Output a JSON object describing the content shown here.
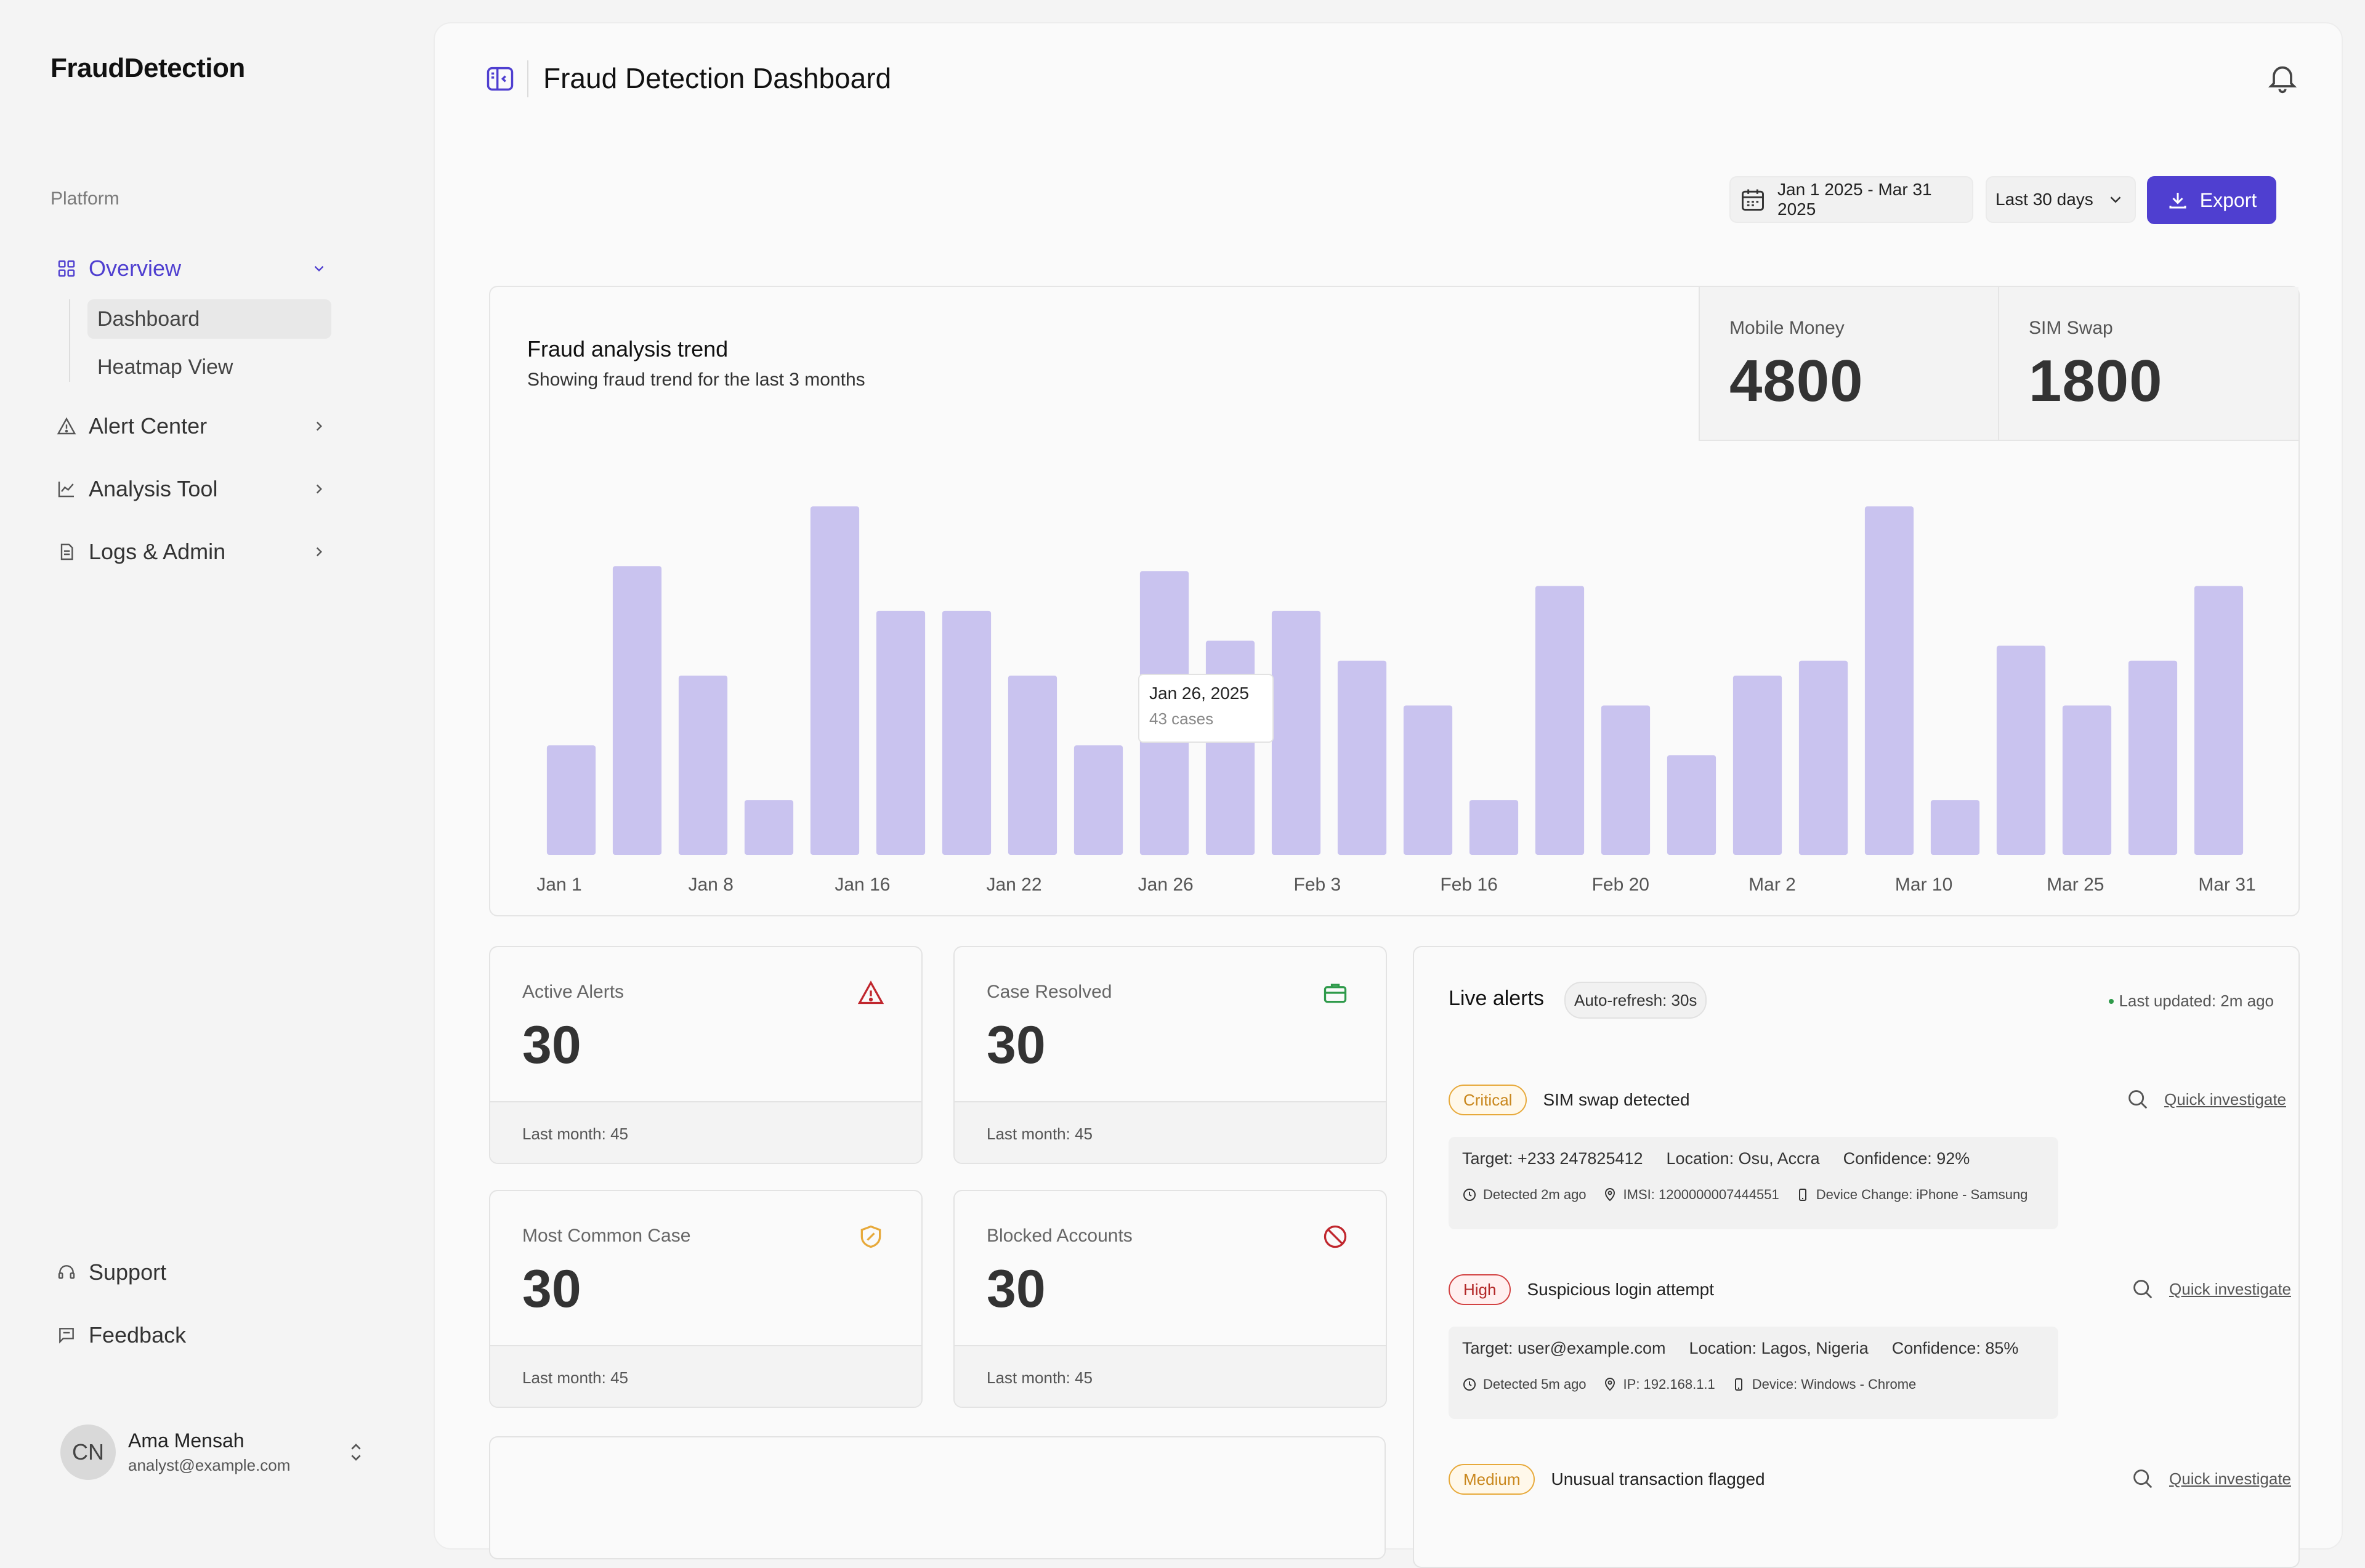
{
  "sidebar": {
    "brand": "FraudDetection",
    "section_label": "Platform",
    "overview": {
      "label": "Overview"
    },
    "sub_items": [
      {
        "label": "Dashboard"
      },
      {
        "label": "Heatmap View"
      }
    ],
    "items": [
      {
        "label": "Alert Center"
      },
      {
        "label": "Analysis Tool"
      },
      {
        "label": "Logs & Admin"
      }
    ],
    "support": "Support",
    "feedback": "Feedback",
    "user": {
      "initials": "CN",
      "name": "Ama Mensah",
      "email": "analyst@example.com"
    }
  },
  "header": {
    "title": "Fraud Detection Dashboard",
    "date_range": "Jan 1 2025 - Mar 31 2025",
    "period": "Last 30 days",
    "export_label": "Export"
  },
  "chart_card": {
    "title": "Fraud analysis trend",
    "subtitle": "Showing fraud trend for the last 3 months",
    "stats": [
      {
        "label": "Mobile Money",
        "value": "4800"
      },
      {
        "label": "SIM Swap",
        "value": "1800"
      }
    ],
    "tooltip": {
      "date": "Jan 26, 2025",
      "cases": "43 cases"
    }
  },
  "chart_data": {
    "type": "bar",
    "title": "Fraud analysis trend",
    "subtitle": "Showing fraud trend for the last 3 months",
    "values": [
      22,
      58,
      36,
      11,
      70,
      49,
      49,
      36,
      22,
      57,
      43,
      49,
      39,
      30,
      11,
      54,
      30,
      20,
      36,
      39,
      70,
      11,
      42,
      30,
      39,
      54
    ],
    "x_tick_labels": [
      "Jan 1",
      "Jan 8",
      "Jan 16",
      "Jan 22",
      "Jan 26",
      "Feb 3",
      "Feb 16",
      "Feb 20",
      "Mar 2",
      "Mar 10",
      "Mar 25",
      "Mar 31"
    ],
    "ylim": [
      0,
      72
    ],
    "grid": false,
    "bar_color": "#c9c3ef",
    "highlighted_index": 10
  },
  "kpis": [
    {
      "label": "Active Alerts",
      "value": "30",
      "footer": "Last month: 45",
      "icon": "warning-triangle-icon",
      "color": "#c0262d"
    },
    {
      "label": "Case Resolved",
      "value": "30",
      "footer": "Last month: 45",
      "icon": "briefcase-icon",
      "color": "#2e9a4a"
    },
    {
      "label": "Most Common Case",
      "value": "30",
      "footer": "Last month: 45",
      "icon": "shield-icon",
      "color": "#e7a93a"
    },
    {
      "label": "Blocked Accounts",
      "value": "30",
      "footer": "Last month: 45",
      "icon": "blocked-icon",
      "color": "#c0262d"
    }
  ],
  "live_alerts": {
    "title": "Live alerts",
    "refresh": "Auto-refresh: 30s",
    "last_updated": "Last updated: 2m ago",
    "quick_investigate": "Quick investigate",
    "alerts": [
      {
        "severity": "Critical",
        "title": "SIM swap detected",
        "target": "Target: +233 247825412",
        "location": "Location: Osu, Accra",
        "confidence": "Confidence: 92%",
        "detected": "Detected 2m ago",
        "meta": "IMSI: 1200000007444551",
        "device": "Device Change: iPhone - Samsung"
      },
      {
        "severity": "High",
        "title": "Suspicious login attempt",
        "target": "Target: user@example.com",
        "location": "Location: Lagos, Nigeria",
        "confidence": "Confidence: 85%",
        "detected": "Detected 5m ago",
        "meta": "IP: 192.168.1.1",
        "device": "Device: Windows - Chrome"
      },
      {
        "severity": "Medium",
        "title": "Unusual transaction flagged"
      }
    ]
  },
  "colors": {
    "accent": "#4f3fd0",
    "bar": "#c9c3ef"
  }
}
